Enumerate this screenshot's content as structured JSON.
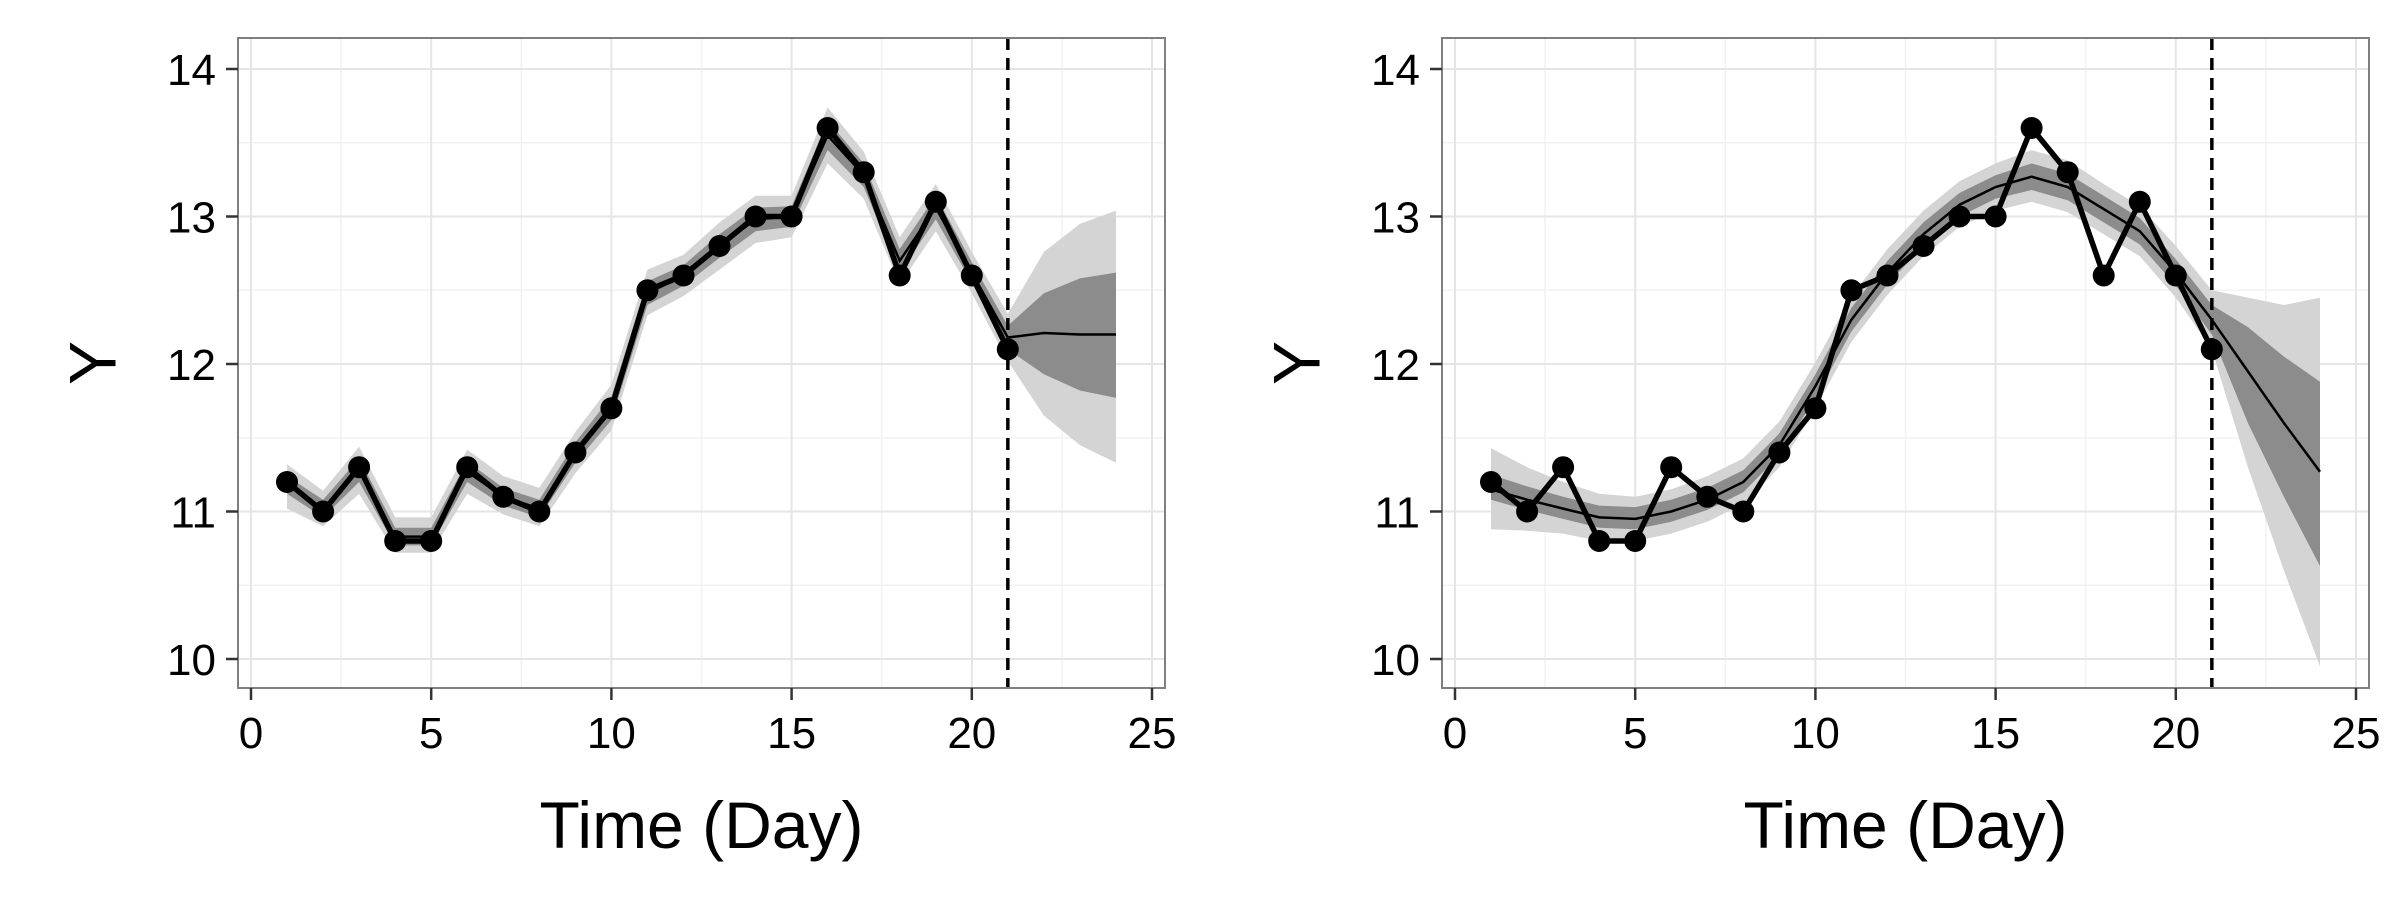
{
  "chart_data": [
    {
      "type": "line",
      "xlabel": "Time (Day)",
      "ylabel": "Y",
      "xlim": [
        0,
        25
      ],
      "ylim": [
        10,
        14
      ],
      "x_ticks": [
        0,
        5,
        10,
        15,
        20,
        25
      ],
      "y_ticks": [
        10,
        11,
        12,
        13,
        14
      ],
      "grid": true,
      "cutoff_x": 21,
      "observed": {
        "x": [
          1,
          2,
          3,
          4,
          5,
          6,
          7,
          8,
          9,
          10,
          11,
          12,
          13,
          14,
          15,
          16,
          17,
          18,
          19,
          20,
          21
        ],
        "y": [
          11.2,
          11.0,
          11.3,
          10.8,
          10.8,
          11.3,
          11.1,
          11.0,
          11.4,
          11.7,
          12.5,
          12.6,
          12.8,
          13.0,
          13.0,
          13.6,
          13.3,
          12.6,
          13.1,
          12.6,
          12.1
        ]
      },
      "fit": {
        "x": [
          1,
          2,
          3,
          4,
          5,
          6,
          7,
          8,
          9,
          10,
          11,
          12,
          13,
          14,
          15,
          16,
          17,
          18,
          19,
          20,
          21,
          22,
          23,
          24
        ],
        "mean": [
          11.18,
          11.02,
          11.28,
          10.83,
          10.83,
          11.27,
          11.1,
          11.02,
          11.4,
          11.7,
          12.48,
          12.6,
          12.8,
          12.98,
          13.0,
          13.55,
          13.28,
          12.7,
          13.06,
          12.62,
          12.18,
          12.21,
          12.2,
          12.2
        ],
        "inner_lower": [
          11.12,
          10.96,
          11.2,
          10.77,
          10.77,
          11.2,
          11.04,
          10.96,
          11.33,
          11.62,
          12.4,
          12.53,
          12.72,
          12.9,
          12.93,
          13.45,
          13.2,
          12.62,
          12.98,
          12.55,
          12.1,
          11.93,
          11.82,
          11.77
        ],
        "inner_upper": [
          11.24,
          11.08,
          11.36,
          10.89,
          10.89,
          11.34,
          11.16,
          11.08,
          11.47,
          11.78,
          12.56,
          12.67,
          12.88,
          13.06,
          13.07,
          13.65,
          13.36,
          12.78,
          13.14,
          12.69,
          12.26,
          12.48,
          12.58,
          12.62
        ],
        "outer_lower": [
          11.02,
          10.9,
          11.12,
          10.72,
          10.72,
          11.12,
          10.98,
          10.9,
          11.26,
          11.55,
          12.33,
          12.46,
          12.64,
          12.82,
          12.86,
          13.36,
          13.12,
          12.54,
          12.9,
          12.48,
          12.02,
          11.65,
          11.45,
          11.33
        ],
        "outer_upper": [
          11.32,
          11.14,
          11.44,
          10.96,
          10.96,
          11.42,
          11.24,
          11.16,
          11.54,
          11.86,
          12.64,
          12.74,
          12.96,
          13.14,
          13.14,
          13.74,
          13.44,
          12.86,
          13.22,
          12.76,
          12.34,
          12.76,
          12.95,
          13.04
        ]
      }
    },
    {
      "type": "line",
      "xlabel": "Time (Day)",
      "ylabel": "Y",
      "xlim": [
        0,
        25
      ],
      "ylim": [
        10,
        14
      ],
      "x_ticks": [
        0,
        5,
        10,
        15,
        20,
        25
      ],
      "y_ticks": [
        10,
        11,
        12,
        13,
        14
      ],
      "grid": true,
      "cutoff_x": 21,
      "observed": {
        "x": [
          1,
          2,
          3,
          4,
          5,
          6,
          7,
          8,
          9,
          10,
          11,
          12,
          13,
          14,
          15,
          16,
          17,
          18,
          19,
          20,
          21
        ],
        "y": [
          11.2,
          11.0,
          11.3,
          10.8,
          10.8,
          11.3,
          11.1,
          11.0,
          11.4,
          11.7,
          12.5,
          12.6,
          12.8,
          13.0,
          13.0,
          13.6,
          13.3,
          12.6,
          13.1,
          12.6,
          12.1
        ]
      },
      "fit": {
        "x": [
          1,
          2,
          3,
          4,
          5,
          6,
          7,
          8,
          9,
          10,
          11,
          12,
          13,
          14,
          15,
          16,
          17,
          18,
          19,
          20,
          21,
          22,
          23,
          24
        ],
        "mean": [
          11.15,
          11.08,
          11.02,
          10.96,
          10.95,
          11.0,
          11.08,
          11.2,
          11.45,
          11.85,
          12.3,
          12.62,
          12.88,
          13.08,
          13.2,
          13.27,
          13.2,
          13.05,
          12.9,
          12.62,
          12.3,
          11.95,
          11.6,
          11.27
        ],
        "inner_lower": [
          11.08,
          11.01,
          10.95,
          10.89,
          10.88,
          10.93,
          11.01,
          11.13,
          11.38,
          11.77,
          12.22,
          12.54,
          12.8,
          13.0,
          13.12,
          13.18,
          13.11,
          12.96,
          12.81,
          12.53,
          12.2,
          11.6,
          11.1,
          10.63
        ],
        "inner_upper": [
          11.25,
          11.17,
          11.1,
          11.04,
          11.03,
          11.08,
          11.16,
          11.28,
          11.53,
          11.93,
          12.38,
          12.7,
          12.96,
          13.16,
          13.28,
          13.36,
          13.29,
          13.14,
          12.99,
          12.71,
          12.4,
          12.25,
          12.05,
          11.88
        ],
        "outer_lower": [
          10.88,
          10.87,
          10.85,
          10.8,
          10.8,
          10.85,
          10.93,
          11.05,
          11.3,
          11.7,
          12.15,
          12.47,
          12.73,
          12.93,
          13.04,
          13.1,
          13.03,
          12.88,
          12.73,
          12.45,
          12.1,
          11.3,
          10.6,
          9.95
        ],
        "outer_upper": [
          11.43,
          11.3,
          11.2,
          11.12,
          11.1,
          11.15,
          11.24,
          11.36,
          11.61,
          12.01,
          12.46,
          12.78,
          13.04,
          13.24,
          13.36,
          13.45,
          13.38,
          13.22,
          13.07,
          12.8,
          12.5,
          12.45,
          12.4,
          12.45
        ]
      }
    }
  ]
}
